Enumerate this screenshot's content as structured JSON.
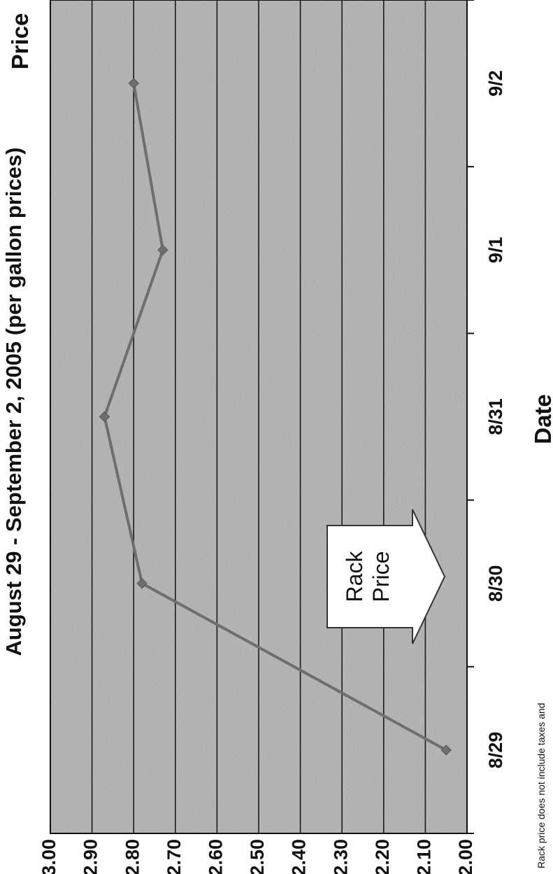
{
  "chart_data": {
    "type": "line",
    "title": "August 29 - September 2, 2005 (per gallon prices)",
    "xlabel": "Date",
    "ylabel": "Price",
    "categories": [
      "8/29",
      "8/30",
      "8/31",
      "9/1",
      "9/2"
    ],
    "y_ticks": [
      "2.00",
      "2.10",
      "2.20",
      "2.30",
      "2.40",
      "2.50",
      "2.60",
      "2.70",
      "2.80",
      "2.90",
      "3.00"
    ],
    "ylim": [
      2.0,
      3.0
    ],
    "grid": true,
    "series": [
      {
        "values": [
          2.05,
          2.78,
          2.87,
          2.73,
          2.8
        ]
      }
    ],
    "annotations": [
      {
        "text_lines": [
          "Rack",
          "Price"
        ],
        "points_to": "8/29"
      }
    ],
    "footnote": "Rack price does not include taxes and",
    "colors": {
      "plot_bg": "#b0b0b0",
      "line": "#6e6e6e",
      "grid": "#1a1a1a",
      "callout_fill": "#ffffff"
    }
  }
}
